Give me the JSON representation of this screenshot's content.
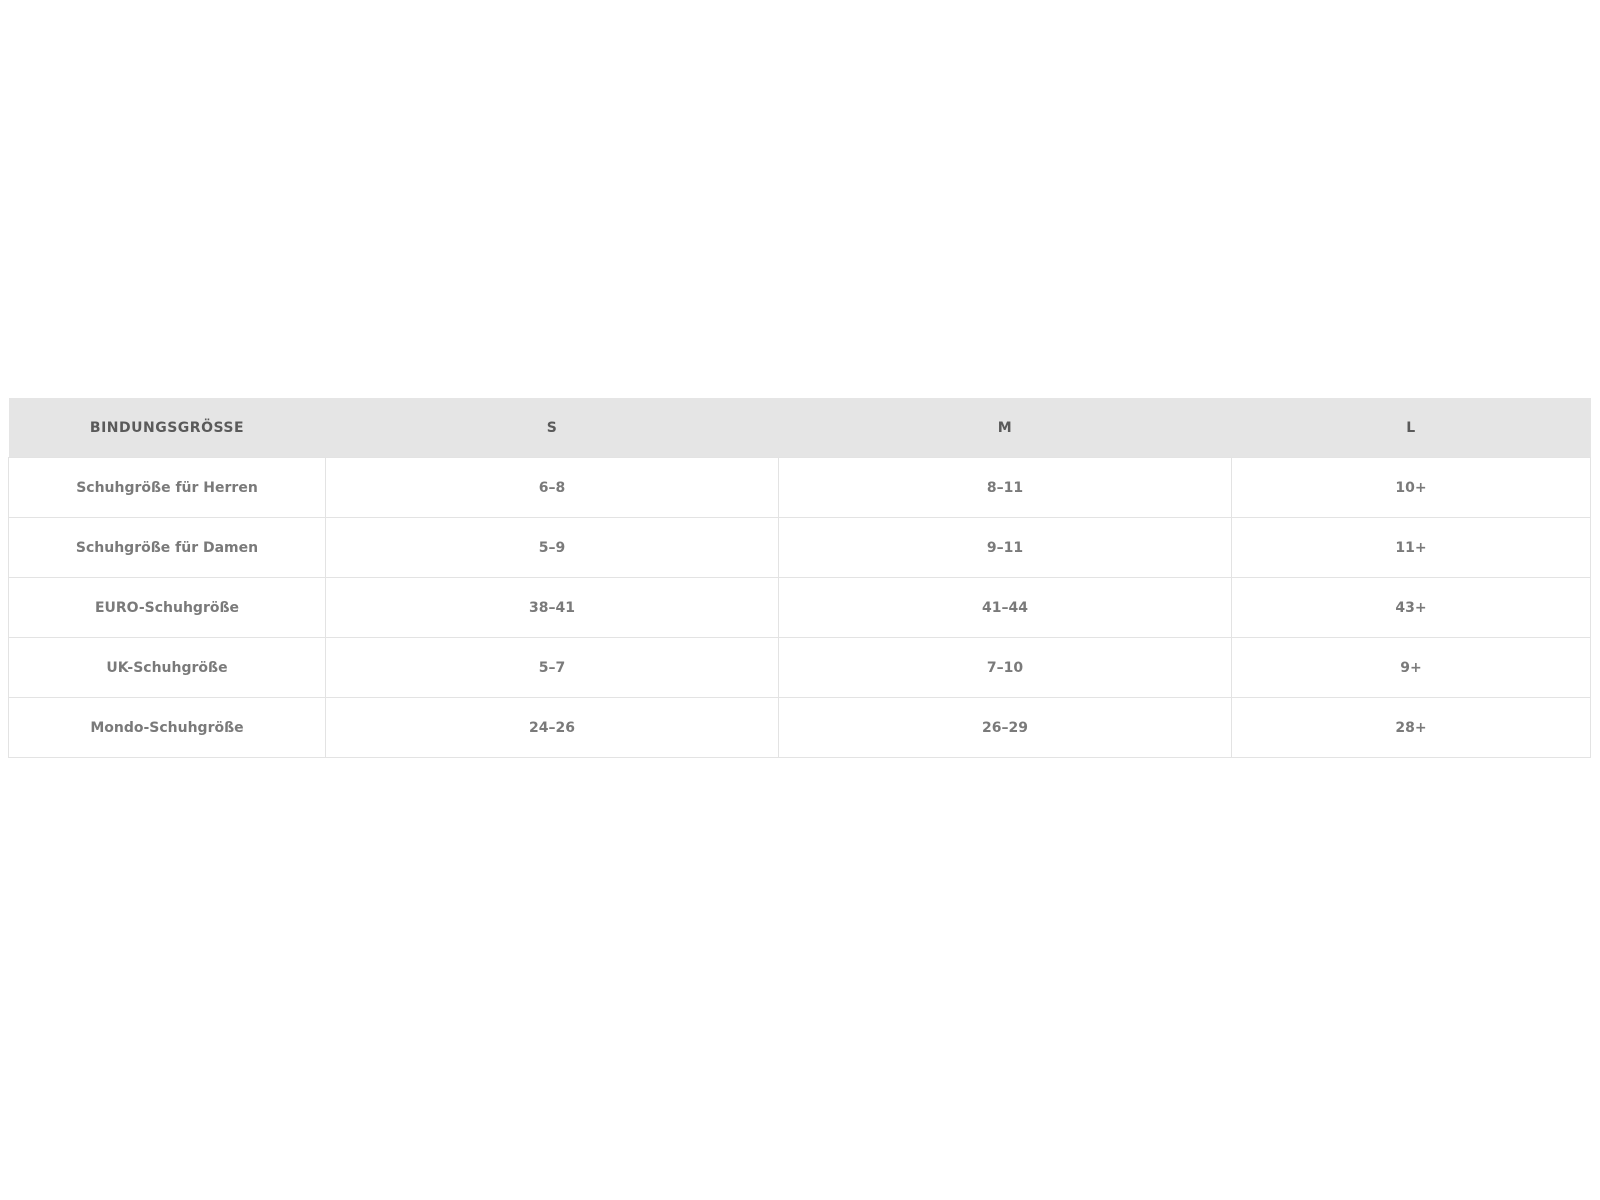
{
  "table": {
    "headers": [
      "BINDUNGSGRÖSSE",
      "S",
      "M",
      "L"
    ],
    "rows": [
      [
        "Schuhgröße für Herren",
        "6–8",
        "8–11",
        "10+"
      ],
      [
        "Schuhgröße für Damen",
        "5–9",
        "9–11",
        "11+"
      ],
      [
        "EURO-Schuhgröße",
        "38–41",
        "41–44",
        "43+"
      ],
      [
        "UK-Schuhgröße",
        "5–7",
        "7–10",
        "9+"
      ],
      [
        "Mondo-Schuhgröße",
        "24–26",
        "26–29",
        "28+"
      ]
    ]
  }
}
